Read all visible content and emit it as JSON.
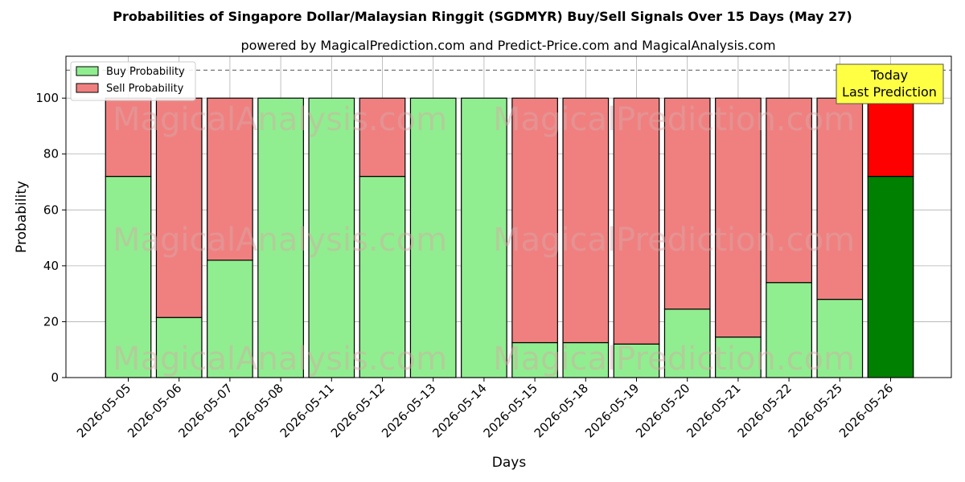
{
  "chart_data": {
    "type": "bar",
    "stacked": true,
    "title": "Probabilities of Singapore Dollar/Malaysian Ringgit (SGDMYR) Buy/Sell Signals Over 15 Days (May 27)",
    "subtitle": "powered by MagicalPrediction.com and Predict-Price.com and MagicalAnalysis.com",
    "xlabel": "Days",
    "ylabel": "Probability",
    "ylim": [
      0,
      115
    ],
    "yticks": [
      0,
      20,
      40,
      60,
      80,
      100
    ],
    "grid": true,
    "legend_position": "top-left",
    "reference_line": 110,
    "categories": [
      "2026-05-05",
      "2026-05-06",
      "2026-05-07",
      "2026-05-08",
      "2026-05-11",
      "2026-05-12",
      "2026-05-13",
      "2026-05-14",
      "2026-05-15",
      "2026-05-18",
      "2026-05-19",
      "2026-05-20",
      "2026-05-21",
      "2026-05-22",
      "2026-05-25",
      "2026-05-26"
    ],
    "series": [
      {
        "name": "Buy Probability",
        "color": "#90ee90",
        "highlight_color": "#008000",
        "values": [
          72,
          21.5,
          42,
          100,
          100,
          72,
          100,
          100,
          12.5,
          12.5,
          12,
          24.5,
          14.5,
          34,
          28,
          72
        ]
      },
      {
        "name": "Sell Probability",
        "color": "#f08080",
        "highlight_color": "#ff0000",
        "values": [
          28,
          78.5,
          58,
          0,
          0,
          28,
          0,
          0,
          87.5,
          87.5,
          88,
          75.5,
          85.5,
          66,
          72,
          28
        ]
      }
    ],
    "annotation": {
      "line1": "Today",
      "line2": "Last Prediction",
      "color": "#ffff44"
    },
    "watermarks": [
      "MagicalAnalysis.com",
      "MagicalPrediction.com"
    ]
  }
}
